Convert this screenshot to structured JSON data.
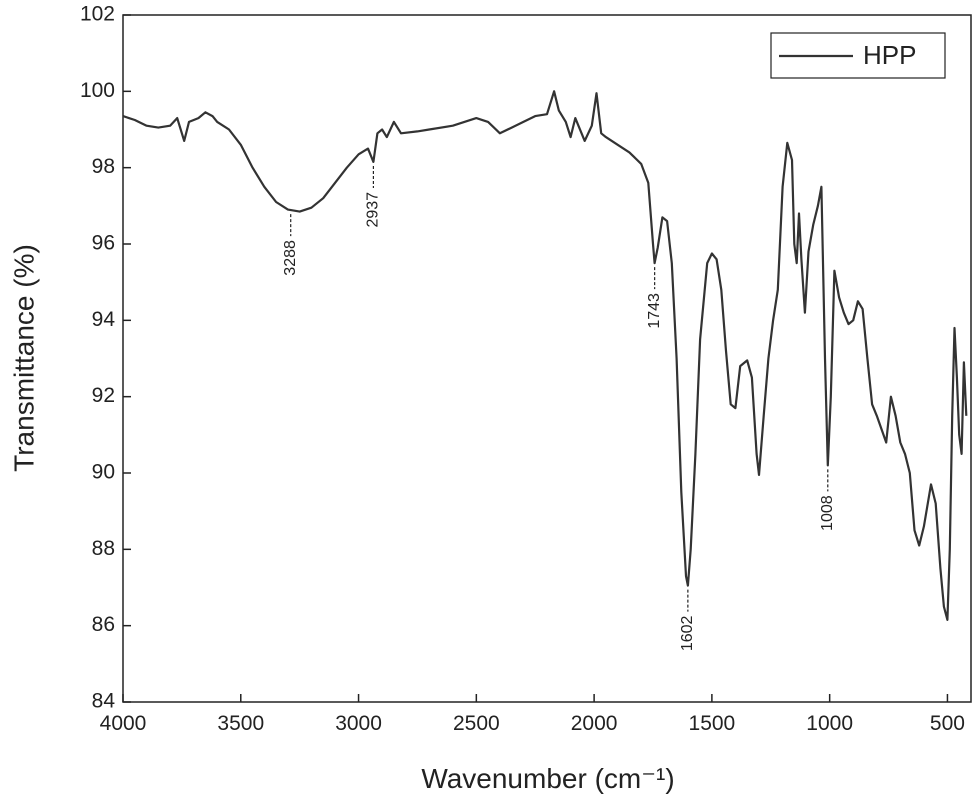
{
  "chart_data": {
    "type": "line",
    "xlabel": "Wavenumber (cm⁻¹)",
    "ylabel": "Transmittance (%)",
    "xlim": [
      4000,
      400
    ],
    "ylim": [
      84,
      102
    ],
    "xticks": [
      4000,
      3500,
      3000,
      2500,
      2000,
      1500,
      1000,
      500
    ],
    "yticks": [
      84,
      86,
      88,
      90,
      92,
      94,
      96,
      98,
      100,
      102
    ],
    "legend": "upper right",
    "x": [
      4000,
      3950,
      3900,
      3850,
      3800,
      3770,
      3740,
      3720,
      3680,
      3650,
      3620,
      3600,
      3550,
      3500,
      3450,
      3400,
      3350,
      3300,
      3250,
      3200,
      3150,
      3100,
      3050,
      3000,
      2960,
      2937,
      2920,
      2900,
      2880,
      2850,
      2820,
      2750,
      2700,
      2600,
      2500,
      2450,
      2400,
      2350,
      2300,
      2250,
      2200,
      2170,
      2150,
      2120,
      2100,
      2080,
      2040,
      2010,
      1990,
      1970,
      1950,
      1900,
      1850,
      1800,
      1770,
      1750,
      1743,
      1730,
      1710,
      1690,
      1670,
      1650,
      1630,
      1610,
      1602,
      1590,
      1570,
      1550,
      1520,
      1500,
      1480,
      1460,
      1440,
      1420,
      1400,
      1380,
      1350,
      1330,
      1310,
      1300,
      1280,
      1260,
      1240,
      1220,
      1200,
      1180,
      1160,
      1150,
      1140,
      1130,
      1120,
      1105,
      1090,
      1070,
      1050,
      1035,
      1020,
      1008,
      995,
      980,
      960,
      940,
      920,
      900,
      880,
      860,
      840,
      820,
      800,
      760,
      740,
      720,
      700,
      680,
      660,
      640,
      620,
      600,
      570,
      550,
      530,
      515,
      500,
      490,
      480,
      470,
      460,
      450,
      440,
      430,
      420
    ],
    "series": [
      {
        "name": "HPP",
        "color": "#333333",
        "values": [
          99.35,
          99.25,
          99.1,
          99.05,
          99.1,
          99.3,
          98.7,
          99.2,
          99.3,
          99.45,
          99.35,
          99.2,
          99.0,
          98.6,
          98.0,
          97.5,
          97.1,
          96.9,
          96.85,
          96.95,
          97.2,
          97.6,
          98.0,
          98.35,
          98.5,
          98.15,
          98.9,
          99.0,
          98.8,
          99.2,
          98.9,
          98.95,
          99.0,
          99.1,
          99.3,
          99.2,
          98.9,
          99.05,
          99.2,
          99.35,
          99.4,
          100.0,
          99.5,
          99.2,
          98.8,
          99.3,
          98.7,
          99.1,
          99.95,
          98.9,
          98.8,
          98.6,
          98.4,
          98.1,
          97.6,
          96.0,
          95.5,
          95.9,
          96.7,
          96.6,
          95.5,
          93.0,
          89.5,
          87.3,
          87.05,
          88.0,
          90.5,
          93.5,
          95.5,
          95.75,
          95.6,
          94.8,
          93.2,
          91.8,
          91.7,
          92.8,
          92.95,
          92.5,
          90.5,
          89.95,
          91.5,
          93.0,
          94.0,
          94.8,
          97.5,
          98.65,
          98.2,
          96.0,
          95.5,
          96.8,
          95.6,
          94.2,
          95.8,
          96.5,
          97.0,
          97.5,
          93.0,
          90.2,
          92.0,
          95.3,
          94.6,
          94.2,
          93.9,
          94.0,
          94.5,
          94.3,
          93.0,
          91.8,
          91.5,
          90.8,
          92.0,
          91.5,
          90.8,
          90.5,
          90.0,
          88.5,
          88.1,
          88.6,
          89.7,
          89.2,
          87.5,
          86.5,
          86.15,
          88.0,
          91.5,
          93.8,
          92.5,
          91.0,
          90.5,
          92.9,
          91.5
        ]
      }
    ],
    "annotations": [
      {
        "x": 3288,
        "label": "3288"
      },
      {
        "x": 2937,
        "label": "2937"
      },
      {
        "x": 1743,
        "label": "1743"
      },
      {
        "x": 1602,
        "label": "1602"
      },
      {
        "x": 1008,
        "label": "1008"
      }
    ]
  }
}
